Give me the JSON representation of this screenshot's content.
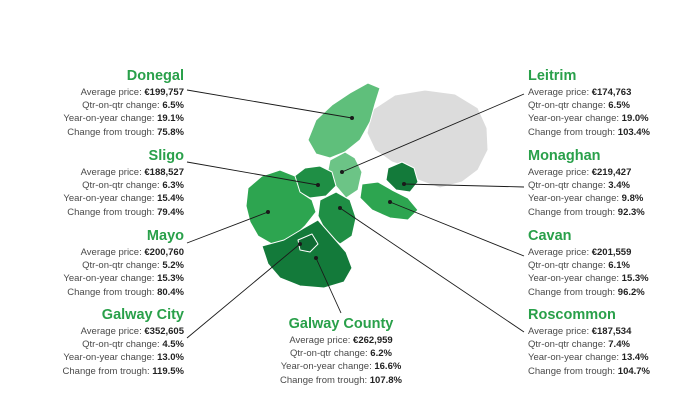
{
  "colors": {
    "name_green": "#29a04a",
    "ni_grey": "#dcdcdc",
    "shade_1": "#5fbf7b",
    "shade_2": "#6cc486",
    "shade_3": "#2da550",
    "shade_4": "#1f8f45",
    "shade_5": "#137a3a",
    "shade_6": "#0f6b33"
  },
  "stat_labels": {
    "avg": "Average price:",
    "qoq": "Qtr-on-qtr change:",
    "yoy": "Year-on-year change:",
    "trough": "Change from trough:"
  },
  "counties": [
    {
      "id": "donegal",
      "name": "Donegal",
      "avg": "€199,757",
      "qoq": "6.5%",
      "yoy": "19.1%",
      "trough": "75.8%",
      "color": "#5fbf7b"
    },
    {
      "id": "sligo",
      "name": "Sligo",
      "avg": "€188,527",
      "qoq": "6.3%",
      "yoy": "15.4%",
      "trough": "79.4%",
      "color": "#2da550"
    },
    {
      "id": "mayo",
      "name": "Mayo",
      "avg": "€200,760",
      "qoq": "5.2%",
      "yoy": "15.3%",
      "trough": "80.4%",
      "color": "#2da550"
    },
    {
      "id": "galway-city",
      "name": "Galway City",
      "avg": "€352,605",
      "qoq": "4.5%",
      "yoy": "13.0%",
      "trough": "119.5%",
      "color": "#0f6b33"
    },
    {
      "id": "galway-county",
      "name": "Galway County",
      "avg": "€262,959",
      "qoq": "6.2%",
      "yoy": "16.6%",
      "trough": "107.8%",
      "color": "#137a3a"
    },
    {
      "id": "leitrim",
      "name": "Leitrim",
      "avg": "€174,763",
      "qoq": "6.5%",
      "yoy": "19.0%",
      "trough": "103.4%",
      "color": "#6cc486"
    },
    {
      "id": "monaghan",
      "name": "Monaghan",
      "avg": "€219,427",
      "qoq": "3.4%",
      "yoy": "9.8%",
      "trough": "92.3%",
      "color": "#137a3a"
    },
    {
      "id": "cavan",
      "name": "Cavan",
      "avg": "€201,559",
      "qoq": "6.1%",
      "yoy": "15.3%",
      "trough": "96.2%",
      "color": "#2da550"
    },
    {
      "id": "roscommon",
      "name": "Roscommon",
      "avg": "€187,534",
      "qoq": "7.4%",
      "yoy": "13.4%",
      "trough": "104.7%",
      "color": "#1f8f45"
    }
  ]
}
